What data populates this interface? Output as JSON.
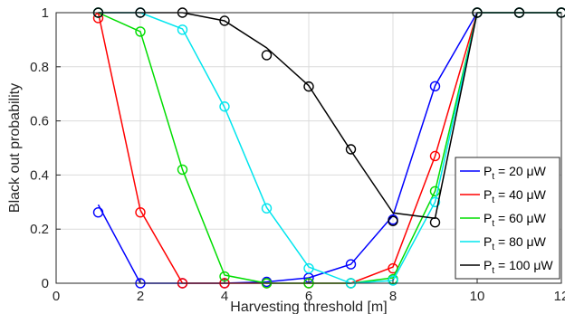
{
  "chart_data": {
    "type": "line",
    "xlabel": "Harvesting threshold [m]",
    "ylabel": "Black out probability",
    "xlim": [
      0,
      12
    ],
    "ylim": [
      0,
      1
    ],
    "xticks": [
      "0",
      "2",
      "4",
      "6",
      "8",
      "10",
      "12"
    ],
    "yticks": [
      "0",
      "0.2",
      "0.4",
      "0.6",
      "0.8",
      "1"
    ],
    "grid": true,
    "legend_position": "right",
    "series": [
      {
        "label_main": "P",
        "label_sub": "t",
        "label_rest": " = 20  μW",
        "color": "#0000ff",
        "line_x": [
          1,
          2,
          3,
          4,
          5,
          6,
          7,
          8,
          9,
          10,
          11,
          12
        ],
        "line_y": [
          0.29,
          0,
          0,
          0,
          0.005,
          0.02,
          0.07,
          0.25,
          0.73,
          1,
          1,
          1
        ],
        "markers_x": [
          1,
          2,
          3,
          4,
          5,
          6,
          7,
          8,
          9,
          10,
          11,
          12
        ],
        "markers_y": [
          0.262,
          0,
          0,
          0,
          0.005,
          0.02,
          0.07,
          0.235,
          0.728,
          1,
          1,
          1
        ]
      },
      {
        "label_main": "P",
        "label_sub": "t",
        "label_rest": " = 40  μW",
        "color": "#ff0000",
        "line_x": [
          1,
          2,
          3,
          4,
          5,
          6,
          7,
          8,
          9,
          10,
          11,
          12
        ],
        "line_y": [
          1,
          0.27,
          0,
          0,
          0,
          0,
          0,
          0.06,
          0.47,
          1,
          1,
          1
        ],
        "markers_x": [
          1,
          2,
          3,
          4,
          5,
          6,
          7,
          8,
          9,
          10,
          11,
          12
        ],
        "markers_y": [
          0.98,
          0.262,
          0,
          0,
          0,
          0,
          0,
          0.055,
          0.47,
          1,
          1,
          1
        ]
      },
      {
        "label_main": "P",
        "label_sub": "t",
        "label_rest": " = 60  μW",
        "color": "#00dd00",
        "line_x": [
          1,
          2,
          3,
          4,
          5,
          6,
          7,
          8,
          9,
          10,
          11,
          12
        ],
        "line_y": [
          1,
          0.93,
          0.42,
          0.03,
          0,
          0,
          0,
          0.02,
          0.34,
          1,
          1,
          1
        ],
        "markers_x": [
          1,
          2,
          3,
          4,
          5,
          6,
          7,
          8,
          9,
          10,
          11,
          12
        ],
        "markers_y": [
          1,
          0.93,
          0.42,
          0.025,
          0,
          0,
          0,
          0.015,
          0.34,
          1,
          1,
          1
        ]
      },
      {
        "label_main": "P",
        "label_sub": "t",
        "label_rest": " = 80  μW",
        "color": "#00e5ee",
        "line_x": [
          1,
          2,
          3,
          4,
          5,
          6,
          7,
          8,
          9,
          10,
          11,
          12
        ],
        "line_y": [
          1,
          1,
          0.94,
          0.65,
          0.28,
          0.06,
          0,
          0.01,
          0.3,
          1,
          1,
          1
        ],
        "markers_x": [
          1,
          2,
          3,
          4,
          5,
          6,
          7,
          8,
          9,
          10,
          11,
          12
        ],
        "markers_y": [
          1,
          1,
          0.937,
          0.653,
          0.277,
          0.055,
          0,
          0.01,
          0.3,
          1,
          1,
          1
        ]
      },
      {
        "label_main": "P",
        "label_sub": "t",
        "label_rest": " = 100  μW",
        "color": "#000000",
        "line_x": [
          1,
          2,
          3,
          4,
          5,
          6,
          7,
          8,
          9,
          10,
          11,
          12
        ],
        "line_y": [
          1,
          1,
          1,
          0.97,
          0.87,
          0.73,
          0.49,
          0.26,
          0.24,
          1,
          1,
          1
        ],
        "markers_x": [
          1,
          2,
          3,
          4,
          5,
          6,
          7,
          8,
          9,
          10,
          11,
          12
        ],
        "markers_y": [
          1,
          1,
          1,
          0.97,
          0.843,
          0.727,
          0.495,
          0.23,
          0.225,
          1,
          1,
          1
        ]
      }
    ]
  }
}
